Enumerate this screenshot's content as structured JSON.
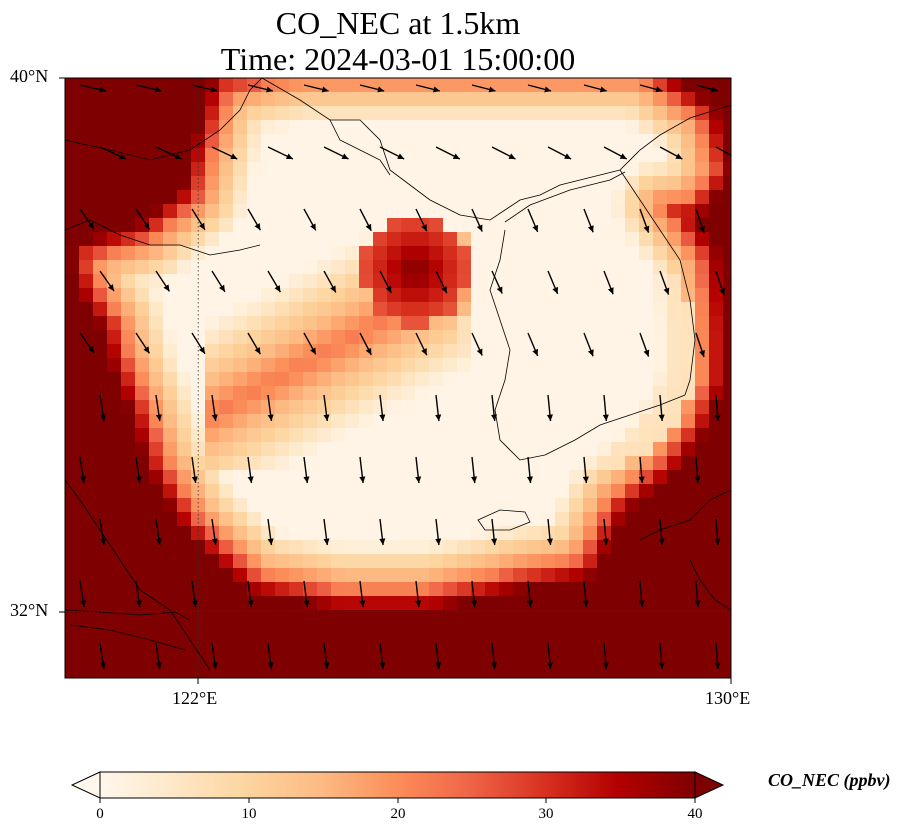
{
  "title": {
    "line1": "CO_NEC at 1.5km",
    "line2": "Time: 2024-03-01 15:00:00"
  },
  "map": {
    "lon_range": [
      120,
      130
    ],
    "lat_range": [
      31,
      40
    ],
    "lat_ticks": [
      {
        "value": 40,
        "label": "40°N"
      },
      {
        "value": 32,
        "label": "32°N"
      }
    ],
    "lon_ticks": [
      {
        "value": 122,
        "label": "122°E"
      },
      {
        "value": 130,
        "label": "130°E"
      }
    ],
    "gridlines": true,
    "field_description": "high values along China coast, Shandong, north and south borders; low over Yellow Sea and Korea",
    "vector_field": "wind arrows, mostly southward/southeastward"
  },
  "colorbar": {
    "label": "CO_NEC (ppbv)",
    "cmap": "OrRd",
    "vmin": 0,
    "vmax": 40,
    "extend": "both",
    "ticks": [
      {
        "value": 0,
        "label": "0"
      },
      {
        "value": 10,
        "label": "10"
      },
      {
        "value": 20,
        "label": "20"
      },
      {
        "value": 30,
        "label": "30"
      },
      {
        "value": 40,
        "label": "40"
      }
    ]
  }
}
